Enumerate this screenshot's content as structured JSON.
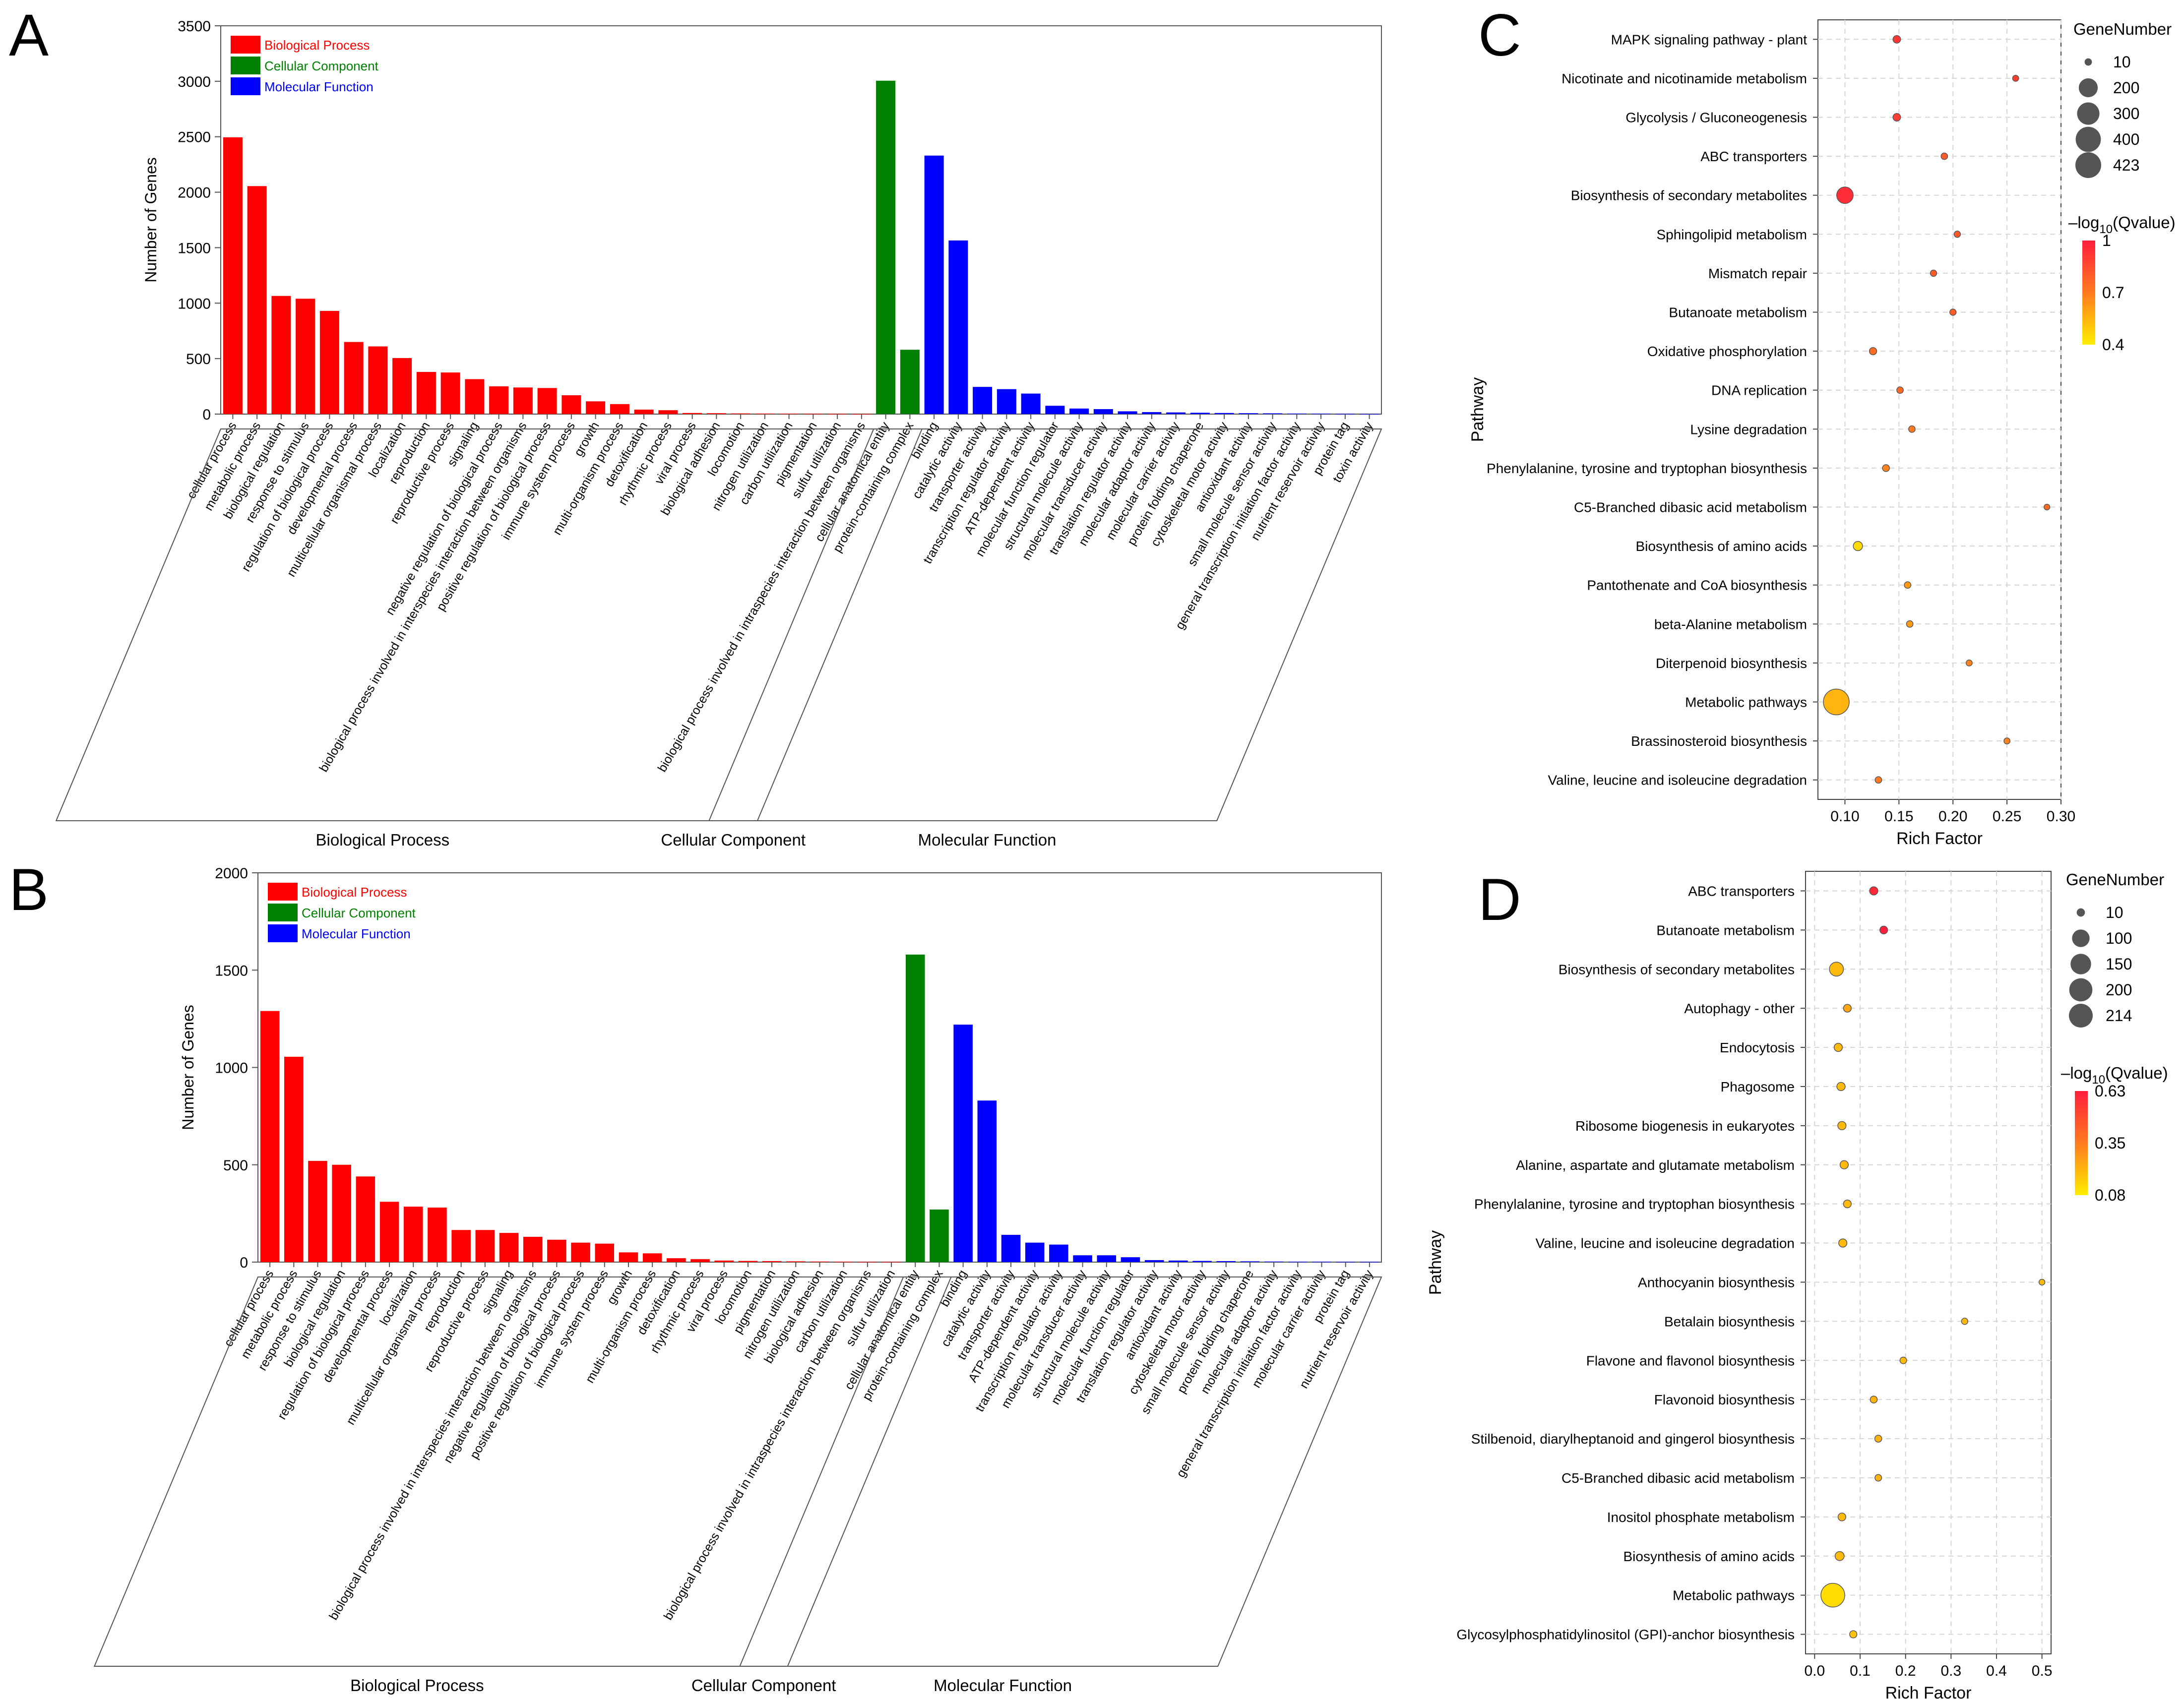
{
  "chart_data": [
    {
      "panel": "A",
      "type": "bar",
      "ylabel": "Number of Genes",
      "ylim": [
        0,
        3500
      ],
      "yticks": [
        0,
        500,
        1000,
        1500,
        2000,
        2500,
        3000,
        3500
      ],
      "legend": [
        {
          "name": "Biological Process",
          "color": "#ff0000"
        },
        {
          "name": "Cellular Component",
          "color": "#008000"
        },
        {
          "name": "Molecular Function",
          "color": "#0000ff"
        }
      ],
      "groups": [
        "Biological Process",
        "Cellular Component",
        "Molecular Function"
      ],
      "bp_categories": [
        "cellular process",
        "metabolic process",
        "biological regulation",
        "response to stimulus",
        "regulation of biological process",
        "developmental process",
        "multicellular organismal process",
        "localization",
        "reproduction",
        "reproductive process",
        "signaling",
        "negative regulation of biological process",
        "biological process involved in interspecies interaction between organisms",
        "positive regulation of biological process",
        "immune system process",
        "growth",
        "multi-organism process",
        "detoxification",
        "rhythmic process",
        "viral process",
        "biological adhesion",
        "locomotion",
        "nitrogen utilization",
        "carbon utilization",
        "pigmentation",
        "sulfur utilization",
        "biological process involved in intraspecies interaction between organisms"
      ],
      "bp_values": [
        2495,
        2055,
        1065,
        1040,
        930,
        650,
        610,
        505,
        380,
        375,
        315,
        250,
        240,
        235,
        170,
        115,
        90,
        40,
        35,
        10,
        8,
        6,
        5,
        4,
        3,
        2,
        1
      ],
      "cc_categories": [
        "cellular anatomical entity",
        "protein-containing complex"
      ],
      "cc_values": [
        3005,
        580
      ],
      "mf_categories": [
        "binding",
        "catalytic activity",
        "transporter activity",
        "transcription regulator activity",
        "ATP-dependent activity",
        "molecular function regulator",
        "structural molecule activity",
        "molecular transducer activity",
        "translation regulator activity",
        "molecular adaptor activity",
        "molecular carrier activity",
        "protein folding chaperone",
        "cytoskeletal motor activity",
        "antioxidant activity",
        "small molecule sensor activity",
        "general transcription initiation factor activity",
        "nutrient reservoir activity",
        "protein tag",
        "toxin activity"
      ],
      "mf_values": [
        2330,
        1565,
        245,
        225,
        185,
        75,
        50,
        45,
        25,
        18,
        15,
        12,
        10,
        8,
        7,
        5,
        4,
        2,
        1
      ]
    },
    {
      "panel": "B",
      "type": "bar",
      "ylabel": "Number of Genes",
      "ylim": [
        0,
        2000
      ],
      "yticks": [
        0,
        500,
        1000,
        1500,
        2000
      ],
      "legend": [
        {
          "name": "Biological Process",
          "color": "#ff0000"
        },
        {
          "name": "Cellular Component",
          "color": "#008000"
        },
        {
          "name": "Molecular Function",
          "color": "#0000ff"
        }
      ],
      "groups": [
        "Biological Process",
        "Cellular Component",
        "Molecular Function"
      ],
      "bp_categories": [
        "cellular process",
        "metabolic process",
        "response to stimulus",
        "biological regulation",
        "regulation of biological process",
        "developmental process",
        "localization",
        "multicellular organismal process",
        "reproduction",
        "reproductive process",
        "signaling",
        "biological process involved in interspecies interaction between organisms",
        "negative regulation of biological process",
        "positive regulation of biological process",
        "immune system process",
        "growth",
        "multi-organism process",
        "detoxification",
        "rhythmic process",
        "viral process",
        "locomotion",
        "pigmentation",
        "nitrogen utilization",
        "biological adhesion",
        "carbon utilization",
        "biological process involved in intraspecies interaction between organisms",
        "sulfur utilization"
      ],
      "bp_values": [
        1290,
        1055,
        520,
        500,
        440,
        310,
        285,
        280,
        165,
        165,
        150,
        130,
        115,
        100,
        95,
        50,
        45,
        20,
        15,
        8,
        6,
        5,
        4,
        3,
        2,
        1,
        1
      ],
      "cc_categories": [
        "cellular anatomical entity",
        "protein-containing complex"
      ],
      "cc_values": [
        1580,
        270
      ],
      "mf_categories": [
        "binding",
        "catalytic activity",
        "transporter activity",
        "ATP-dependent activity",
        "transcription regulator activity",
        "molecular transducer activity",
        "structural molecule activity",
        "molecular function regulator",
        "translation regulator activity",
        "antioxidant activity",
        "cytoskeletal motor activity",
        "small molecule sensor activity",
        "protein folding chaperone",
        "molecular adaptor activity",
        "general transcription initiation factor activity",
        "molecular carrier activity",
        "protein tag",
        "nutrient reservoir activity"
      ],
      "mf_values": [
        1220,
        830,
        140,
        100,
        90,
        35,
        35,
        25,
        10,
        8,
        6,
        5,
        4,
        3,
        2,
        2,
        1,
        1
      ]
    },
    {
      "panel": "C",
      "type": "scatter",
      "xlabel": "Rich Factor",
      "ylabel": "Pathway",
      "xlim": [
        0.075,
        0.3
      ],
      "xticks": [
        0.1,
        0.15,
        0.2,
        0.25,
        0.3
      ],
      "xtick_labels": [
        "0.10",
        "0.15",
        "0.20",
        "0.25",
        "0.30"
      ],
      "pathways": [
        "MAPK signaling pathway - plant",
        "Nicotinate and nicotinamide metabolism",
        "Glycolysis / Gluconeogenesis",
        "ABC transporters",
        "Biosynthesis of secondary metabolites",
        "Sphingolipid metabolism",
        "Mismatch repair",
        "Butanoate metabolism",
        "Oxidative phosphorylation",
        "DNA replication",
        "Lysine degradation",
        "Phenylalanine, tyrosine and tryptophan biosynthesis",
        "C5-Branched dibasic acid metabolism",
        "Biosynthesis of amino acids",
        "Pantothenate and CoA biosynthesis",
        "beta-Alanine metabolism",
        "Diterpenoid biosynthesis",
        "Metabolic pathways",
        "Brassinosteroid biosynthesis",
        "Valine, leucine and isoleucine degradation"
      ],
      "rich_factor": [
        0.148,
        0.258,
        0.148,
        0.192,
        0.1,
        0.204,
        0.182,
        0.2,
        0.126,
        0.151,
        0.162,
        0.138,
        0.287,
        0.112,
        0.158,
        0.16,
        0.215,
        0.092,
        0.25,
        0.131
      ],
      "gene_number": [
        12,
        4,
        12,
        6,
        140,
        5,
        5,
        5,
        10,
        6,
        6,
        8,
        3,
        25,
        6,
        6,
        4,
        423,
        4,
        6
      ],
      "neg_log10_q": [
        0.92,
        0.9,
        0.9,
        0.8,
        0.95,
        0.8,
        0.8,
        0.8,
        0.75,
        0.75,
        0.7,
        0.68,
        0.75,
        0.45,
        0.62,
        0.62,
        0.68,
        0.55,
        0.68,
        0.7
      ],
      "size_legend_title": "GeneNumber",
      "size_legend": [
        10,
        200,
        300,
        400,
        423
      ],
      "color_legend_title_pre": "–log",
      "color_legend_title_sub": "10",
      "color_legend_title_post": "(Qvalue)",
      "color_legend_ticks": [
        "1",
        "0.7",
        "0.4"
      ],
      "color_range": [
        0.4,
        1.0
      ]
    },
    {
      "panel": "D",
      "type": "scatter",
      "xlabel": "Rich Factor",
      "ylabel": "Pathway",
      "xlim": [
        -0.02,
        0.52
      ],
      "xticks": [
        0.0,
        0.1,
        0.2,
        0.3,
        0.4,
        0.5
      ],
      "xtick_labels": [
        "0.0",
        "0.1",
        "0.2",
        "0.3",
        "0.4",
        "0.5"
      ],
      "pathways": [
        "ABC transporters",
        "Butanoate metabolism",
        "Biosynthesis of secondary metabolites",
        "Autophagy - other",
        "Endocytosis",
        "Phagosome",
        "Ribosome biogenesis in eukaryotes",
        "Alanine, aspartate and glutamate metabolism",
        "Phenylalanine, tyrosine and tryptophan biosynthesis",
        "Valine, leucine and isoleucine degradation",
        "Anthocyanin biosynthesis",
        "Betalain biosynthesis",
        "Flavone and flavonol biosynthesis",
        "Flavonoid biosynthesis",
        "Stilbenoid, diarylheptanoid and gingerol biosynthesis",
        "C5-Branched dibasic acid metabolism",
        "Inositol phosphate metabolism",
        "Biosynthesis of amino acids",
        "Metabolic pathways",
        "Glycosylphosphatidylinositol (GPI)-anchor biosynthesis"
      ],
      "rich_factor": [
        0.13,
        0.152,
        0.048,
        0.072,
        0.052,
        0.058,
        0.06,
        0.065,
        0.072,
        0.062,
        0.5,
        0.33,
        0.195,
        0.13,
        0.14,
        0.14,
        0.06,
        0.055,
        0.04,
        0.085
      ],
      "gene_number": [
        10,
        8,
        55,
        8,
        10,
        10,
        10,
        10,
        8,
        10,
        2,
        3,
        4,
        5,
        5,
        4,
        8,
        14,
        214,
        6
      ],
      "neg_log10_q": [
        0.6,
        0.63,
        0.2,
        0.25,
        0.2,
        0.2,
        0.2,
        0.2,
        0.2,
        0.2,
        0.2,
        0.2,
        0.2,
        0.22,
        0.22,
        0.22,
        0.2,
        0.2,
        0.12,
        0.18
      ],
      "size_legend_title": "GeneNumber",
      "size_legend": [
        10,
        100,
        150,
        200,
        214
      ],
      "color_legend_title_pre": "–log",
      "color_legend_title_sub": "10",
      "color_legend_title_post": "(Qvalue)",
      "color_legend_ticks": [
        "0.63",
        "0.35",
        "0.08"
      ],
      "color_range": [
        0.08,
        0.63
      ]
    }
  ]
}
